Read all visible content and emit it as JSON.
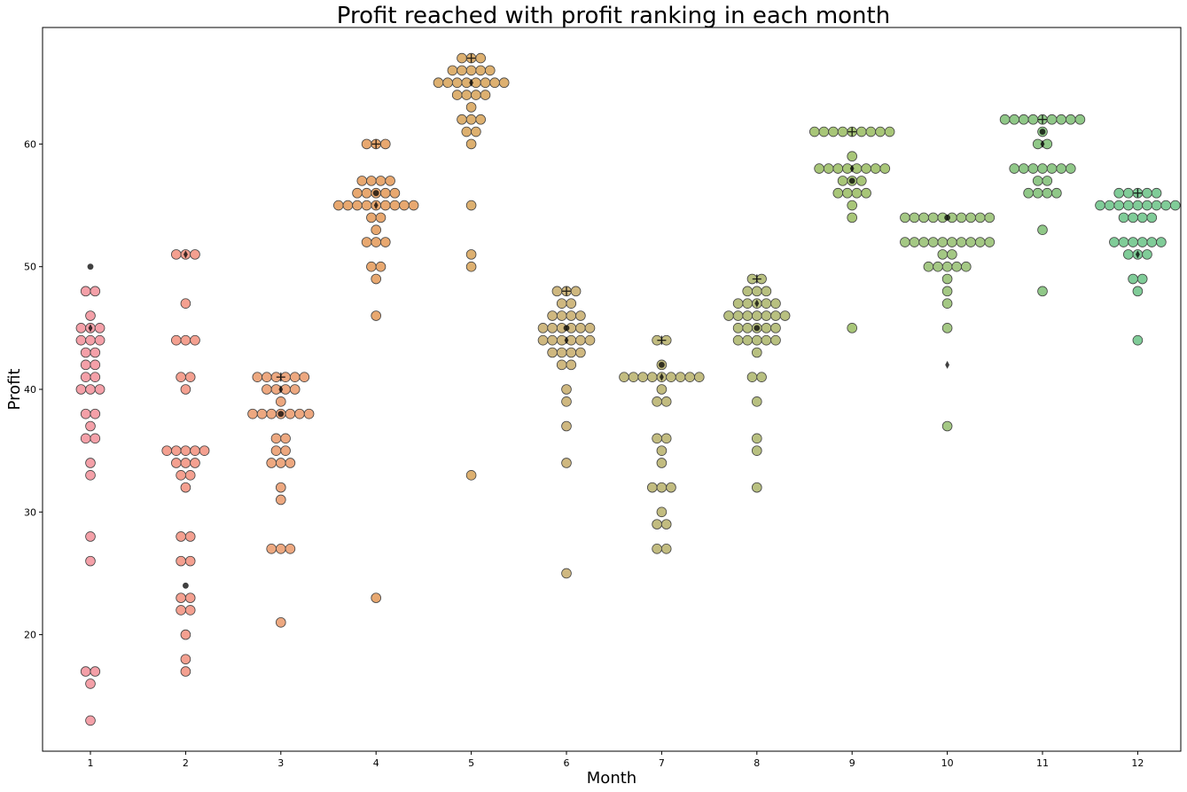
{
  "chart_data": {
    "type": "scatter",
    "subtype": "swarm",
    "title": "Profit reached with profit ranking in each month",
    "xlabel": "Month",
    "ylabel": "Profit",
    "categories": [
      "1",
      "2",
      "3",
      "4",
      "5",
      "6",
      "7",
      "8",
      "9",
      "10",
      "11",
      "12"
    ],
    "yticks": [
      20,
      30,
      40,
      50,
      60
    ],
    "ylim": [
      10.5,
      69.5
    ],
    "grid": false,
    "colors": [
      "#f4a0a8",
      "#f4a090",
      "#eda880",
      "#e8a870",
      "#ddb070",
      "#cfb880",
      "#c2bc80",
      "#b8c080",
      "#a8c678",
      "#a4c884",
      "#90c888",
      "#80cc98"
    ],
    "series": [
      {
        "category": "1",
        "values": [
          48,
          48,
          46,
          45,
          45,
          45,
          44,
          44,
          44,
          43,
          43,
          42,
          42,
          41,
          41,
          40,
          40,
          40,
          38,
          38,
          37,
          36,
          36,
          34,
          33,
          28,
          26,
          17,
          17,
          16,
          13
        ]
      },
      {
        "category": "2",
        "values": [
          51,
          51,
          51,
          47,
          44,
          44,
          44,
          41,
          41,
          40,
          35,
          35,
          35,
          35,
          35,
          34,
          34,
          34,
          33,
          33,
          32,
          28,
          28,
          26,
          26,
          23,
          23,
          22,
          22,
          20,
          18,
          17
        ]
      },
      {
        "category": "3",
        "values": [
          41,
          41,
          41,
          41,
          41,
          41,
          40,
          40,
          40,
          40,
          39,
          38,
          38,
          38,
          38,
          38,
          38,
          38,
          36,
          36,
          35,
          35,
          34,
          34,
          34,
          32,
          31,
          27,
          27,
          27,
          21
        ]
      },
      {
        "category": "4",
        "values": [
          60,
          60,
          60,
          57,
          57,
          57,
          57,
          56,
          56,
          56,
          56,
          56,
          55,
          55,
          55,
          55,
          55,
          55,
          55,
          55,
          55,
          54,
          54,
          53,
          52,
          52,
          52,
          50,
          50,
          49,
          46,
          23
        ]
      },
      {
        "category": "5",
        "values": [
          67,
          67,
          67,
          66,
          66,
          66,
          66,
          66,
          65,
          65,
          65,
          65,
          65,
          65,
          65,
          65,
          64,
          64,
          64,
          64,
          63,
          62,
          62,
          62,
          61,
          61,
          60,
          55,
          51,
          50,
          33
        ]
      },
      {
        "category": "6",
        "values": [
          48,
          48,
          48,
          47,
          47,
          46,
          46,
          46,
          46,
          45,
          45,
          45,
          45,
          45,
          45,
          44,
          44,
          44,
          44,
          44,
          44,
          43,
          43,
          43,
          43,
          42,
          42,
          40,
          39,
          37,
          34,
          25
        ]
      },
      {
        "category": "7",
        "values": [
          44,
          44,
          42,
          41,
          41,
          41,
          41,
          41,
          41,
          41,
          41,
          41,
          40,
          39,
          39,
          36,
          36,
          35,
          34,
          32,
          32,
          32,
          30,
          29,
          29,
          27,
          27
        ]
      },
      {
        "category": "8",
        "values": [
          49,
          49,
          48,
          48,
          48,
          47,
          47,
          47,
          47,
          47,
          46,
          46,
          46,
          46,
          46,
          46,
          46,
          45,
          45,
          45,
          45,
          45,
          44,
          44,
          44,
          44,
          44,
          43,
          41,
          41,
          39,
          36,
          35,
          32
        ]
      },
      {
        "category": "9",
        "values": [
          61,
          61,
          61,
          61,
          61,
          61,
          61,
          61,
          61,
          59,
          58,
          58,
          58,
          58,
          58,
          58,
          58,
          58,
          57,
          57,
          57,
          56,
          56,
          56,
          56,
          55,
          54,
          45
        ]
      },
      {
        "category": "10",
        "values": [
          54,
          54,
          54,
          54,
          54,
          54,
          54,
          54,
          54,
          54,
          52,
          52,
          52,
          52,
          52,
          52,
          52,
          52,
          52,
          52,
          51,
          51,
          50,
          50,
          50,
          50,
          50,
          49,
          48,
          47,
          45,
          37
        ]
      },
      {
        "category": "11",
        "values": [
          62,
          62,
          62,
          62,
          62,
          62,
          62,
          62,
          62,
          61,
          60,
          60,
          58,
          58,
          58,
          58,
          58,
          58,
          58,
          57,
          57,
          56,
          56,
          56,
          56,
          53,
          48
        ]
      },
      {
        "category": "12",
        "values": [
          56,
          56,
          56,
          56,
          56,
          55,
          55,
          55,
          55,
          55,
          55,
          55,
          55,
          55,
          54,
          54,
          54,
          54,
          52,
          52,
          52,
          52,
          52,
          52,
          51,
          51,
          51,
          49,
          49,
          48,
          44
        ]
      }
    ],
    "markers": [
      {
        "category": "1",
        "shape": "dot",
        "value": 50
      },
      {
        "category": "1",
        "shape": "diamond",
        "value": 45
      },
      {
        "category": "2",
        "shape": "diamond",
        "value": 51
      },
      {
        "category": "2",
        "shape": "dot",
        "value": 24
      },
      {
        "category": "3",
        "shape": "plus",
        "value": 41
      },
      {
        "category": "3",
        "shape": "diamond",
        "value": 40
      },
      {
        "category": "3",
        "shape": "dot",
        "value": 38
      },
      {
        "category": "4",
        "shape": "plus",
        "value": 60
      },
      {
        "category": "4",
        "shape": "dot",
        "value": 56
      },
      {
        "category": "4",
        "shape": "diamond",
        "value": 55
      },
      {
        "category": "5",
        "shape": "plus",
        "value": 67
      },
      {
        "category": "5",
        "shape": "diamond",
        "value": 65
      },
      {
        "category": "6",
        "shape": "plus",
        "value": 48
      },
      {
        "category": "6",
        "shape": "dot",
        "value": 45
      },
      {
        "category": "6",
        "shape": "diamond",
        "value": 44
      },
      {
        "category": "7",
        "shape": "plus",
        "value": 44
      },
      {
        "category": "7",
        "shape": "dot",
        "value": 42
      },
      {
        "category": "7",
        "shape": "diamond",
        "value": 41
      },
      {
        "category": "8",
        "shape": "plus",
        "value": 49
      },
      {
        "category": "8",
        "shape": "diamond",
        "value": 47
      },
      {
        "category": "8",
        "shape": "dot",
        "value": 45
      },
      {
        "category": "9",
        "shape": "plus",
        "value": 61
      },
      {
        "category": "9",
        "shape": "diamond",
        "value": 58
      },
      {
        "category": "9",
        "shape": "dot",
        "value": 57
      },
      {
        "category": "10",
        "shape": "dot",
        "value": 54
      },
      {
        "category": "10",
        "shape": "diamond",
        "value": 42
      },
      {
        "category": "11",
        "shape": "plus",
        "value": 62
      },
      {
        "category": "11",
        "shape": "dot",
        "value": 61
      },
      {
        "category": "11",
        "shape": "diamond",
        "value": 60
      },
      {
        "category": "12",
        "shape": "plus",
        "value": 56
      },
      {
        "category": "12",
        "shape": "diamond",
        "value": 51
      }
    ]
  }
}
